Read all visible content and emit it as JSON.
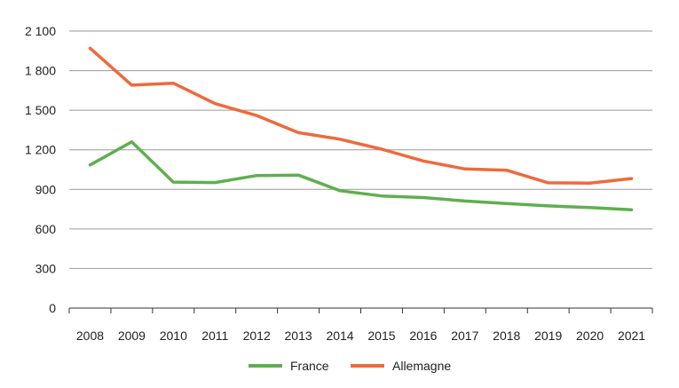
{
  "chart_data": {
    "type": "line",
    "title": "",
    "xlabel": "",
    "ylabel": "",
    "x": [
      "2008",
      "2009",
      "2010",
      "2011",
      "2012",
      "2013",
      "2014",
      "2015",
      "2016",
      "2017",
      "2018",
      "2019",
      "2020",
      "2021"
    ],
    "ylim": [
      0,
      2100
    ],
    "y_ticks": [
      0,
      300,
      600,
      900,
      1200,
      1500,
      1800,
      2100
    ],
    "y_tick_labels": [
      "0",
      "300",
      "600",
      "900",
      "1 200",
      "1 500",
      "1 800",
      "2 100"
    ],
    "grid": true,
    "legend_position": "bottom",
    "series": [
      {
        "name": "France",
        "color": "#5faf4f",
        "values": [
          1085,
          1260,
          955,
          952,
          1005,
          1008,
          890,
          850,
          838,
          812,
          793,
          775,
          762,
          745
        ]
      },
      {
        "name": "Allemagne",
        "color": "#ee6a3c",
        "values": [
          1970,
          1690,
          1705,
          1550,
          1460,
          1330,
          1280,
          1205,
          1115,
          1055,
          1045,
          950,
          948,
          982
        ]
      }
    ]
  }
}
